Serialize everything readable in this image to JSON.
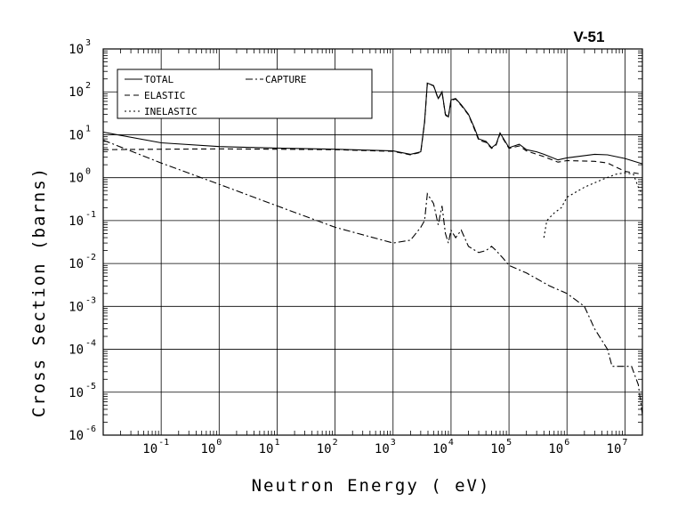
{
  "chart_data": {
    "type": "line",
    "title": "V-51",
    "xlabel": "Neutron Energy ( eV)",
    "ylabel": "Cross Section (barns)",
    "xscale": "log",
    "yscale": "log",
    "xlim": [
      0.01,
      20000000
    ],
    "ylim": [
      1e-06,
      1000
    ],
    "grid": true,
    "legend_position": "top-left",
    "x_ticks": [
      {
        "base": "10",
        "exp": "-1"
      },
      {
        "base": "10",
        "exp": "0"
      },
      {
        "base": "10",
        "exp": "1"
      },
      {
        "base": "10",
        "exp": "2"
      },
      {
        "base": "10",
        "exp": "3"
      },
      {
        "base": "10",
        "exp": "4"
      },
      {
        "base": "10",
        "exp": "5"
      },
      {
        "base": "10",
        "exp": "6"
      },
      {
        "base": "10",
        "exp": "7"
      }
    ],
    "y_ticks": [
      {
        "base": "10",
        "exp": "-6"
      },
      {
        "base": "10",
        "exp": "-5"
      },
      {
        "base": "10",
        "exp": "-4"
      },
      {
        "base": "10",
        "exp": "-3"
      },
      {
        "base": "10",
        "exp": "-2"
      },
      {
        "base": "10",
        "exp": "-1"
      },
      {
        "base": "10",
        "exp": "0"
      },
      {
        "base": "10",
        "exp": "1"
      },
      {
        "base": "10",
        "exp": "2"
      },
      {
        "base": "10",
        "exp": "3"
      }
    ],
    "series": [
      {
        "name": "TOTAL",
        "dash": "",
        "points": [
          [
            0.01,
            11.5
          ],
          [
            0.1,
            6.5
          ],
          [
            1,
            5.3
          ],
          [
            10,
            4.9
          ],
          [
            100,
            4.6
          ],
          [
            1000,
            4.2
          ],
          [
            2000,
            3.5
          ],
          [
            3000,
            4.0
          ],
          [
            3500,
            20
          ],
          [
            3900,
            160
          ],
          [
            5000,
            140
          ],
          [
            6000,
            70
          ],
          [
            7000,
            100
          ],
          [
            8000,
            30
          ],
          [
            9000,
            26
          ],
          [
            10000,
            65
          ],
          [
            12000,
            70
          ],
          [
            15000,
            50
          ],
          [
            20000,
            30
          ],
          [
            25000,
            15
          ],
          [
            30000,
            8
          ],
          [
            40000,
            7
          ],
          [
            50000,
            5
          ],
          [
            60000,
            6
          ],
          [
            70000,
            11
          ],
          [
            100000,
            5
          ],
          [
            150000,
            6
          ],
          [
            200000,
            4.5
          ],
          [
            300000,
            4.0
          ],
          [
            400000,
            3.5
          ],
          [
            700000,
            2.6
          ],
          [
            1000000,
            2.9
          ],
          [
            3000000,
            3.5
          ],
          [
            5000000,
            3.4
          ],
          [
            10000000,
            2.8
          ],
          [
            20000000,
            2.1
          ]
        ]
      },
      {
        "name": "CAPTURE",
        "dash": "8,3,2,3",
        "points": [
          [
            0.01,
            7.5
          ],
          [
            0.1,
            2.2
          ],
          [
            1,
            0.7
          ],
          [
            10,
            0.22
          ],
          [
            100,
            0.07
          ],
          [
            1000,
            0.03
          ],
          [
            2000,
            0.035
          ],
          [
            3000,
            0.07
          ],
          [
            3500,
            0.1
          ],
          [
            3900,
            0.42
          ],
          [
            5000,
            0.25
          ],
          [
            6000,
            0.08
          ],
          [
            7000,
            0.22
          ],
          [
            8000,
            0.05
          ],
          [
            9000,
            0.03
          ],
          [
            10000,
            0.06
          ],
          [
            12000,
            0.04
          ],
          [
            15000,
            0.06
          ],
          [
            20000,
            0.025
          ],
          [
            30000,
            0.018
          ],
          [
            40000,
            0.02
          ],
          [
            50000,
            0.025
          ],
          [
            60000,
            0.02
          ],
          [
            80000,
            0.013
          ],
          [
            100000,
            0.009
          ],
          [
            200000,
            0.006
          ],
          [
            500000,
            0.003
          ],
          [
            1000000,
            0.002
          ],
          [
            2000000,
            0.001
          ],
          [
            3000000,
            0.0003
          ],
          [
            5000000,
            0.0001
          ],
          [
            6000000,
            4e-05
          ],
          [
            10000000,
            4e-05
          ],
          [
            13000000,
            4e-05
          ],
          [
            17000000,
            1.5e-05
          ],
          [
            20000000,
            3e-06
          ]
        ]
      },
      {
        "name": "ELASTIC",
        "dash": "6,4",
        "points": [
          [
            0.01,
            4.5
          ],
          [
            0.1,
            4.6
          ],
          [
            1,
            4.7
          ],
          [
            10,
            4.6
          ],
          [
            100,
            4.5
          ],
          [
            1000,
            4.1
          ],
          [
            2000,
            3.4
          ],
          [
            3000,
            3.9
          ],
          [
            3500,
            19
          ],
          [
            3900,
            158
          ],
          [
            5000,
            138
          ],
          [
            6000,
            68
          ],
          [
            7000,
            98
          ],
          [
            8000,
            29
          ],
          [
            9000,
            25
          ],
          [
            10000,
            63
          ],
          [
            12000,
            68
          ],
          [
            15000,
            48
          ],
          [
            20000,
            29
          ],
          [
            25000,
            14
          ],
          [
            30000,
            7.5
          ],
          [
            40000,
            6.6
          ],
          [
            50000,
            4.8
          ],
          [
            60000,
            5.8
          ],
          [
            70000,
            10.5
          ],
          [
            100000,
            4.8
          ],
          [
            150000,
            5.5
          ],
          [
            200000,
            4.2
          ],
          [
            300000,
            3.5
          ],
          [
            400000,
            3.1
          ],
          [
            700000,
            2.3
          ],
          [
            1000000,
            2.5
          ],
          [
            3000000,
            2.4
          ],
          [
            5000000,
            2.2
          ],
          [
            10000000,
            1.4
          ],
          [
            20000000,
            1.2
          ]
        ]
      },
      {
        "name": "INELASTIC",
        "dash": "2,3",
        "points": [
          [
            400000,
            0.04
          ],
          [
            450000,
            0.1
          ],
          [
            600000,
            0.15
          ],
          [
            800000,
            0.2
          ],
          [
            1000000,
            0.35
          ],
          [
            2000000,
            0.6
          ],
          [
            4000000,
            0.9
          ],
          [
            7000000,
            1.2
          ],
          [
            10000000,
            1.3
          ],
          [
            14000000,
            1.2
          ],
          [
            17000000,
            0.6
          ],
          [
            20000000,
            0.4
          ]
        ]
      }
    ]
  }
}
